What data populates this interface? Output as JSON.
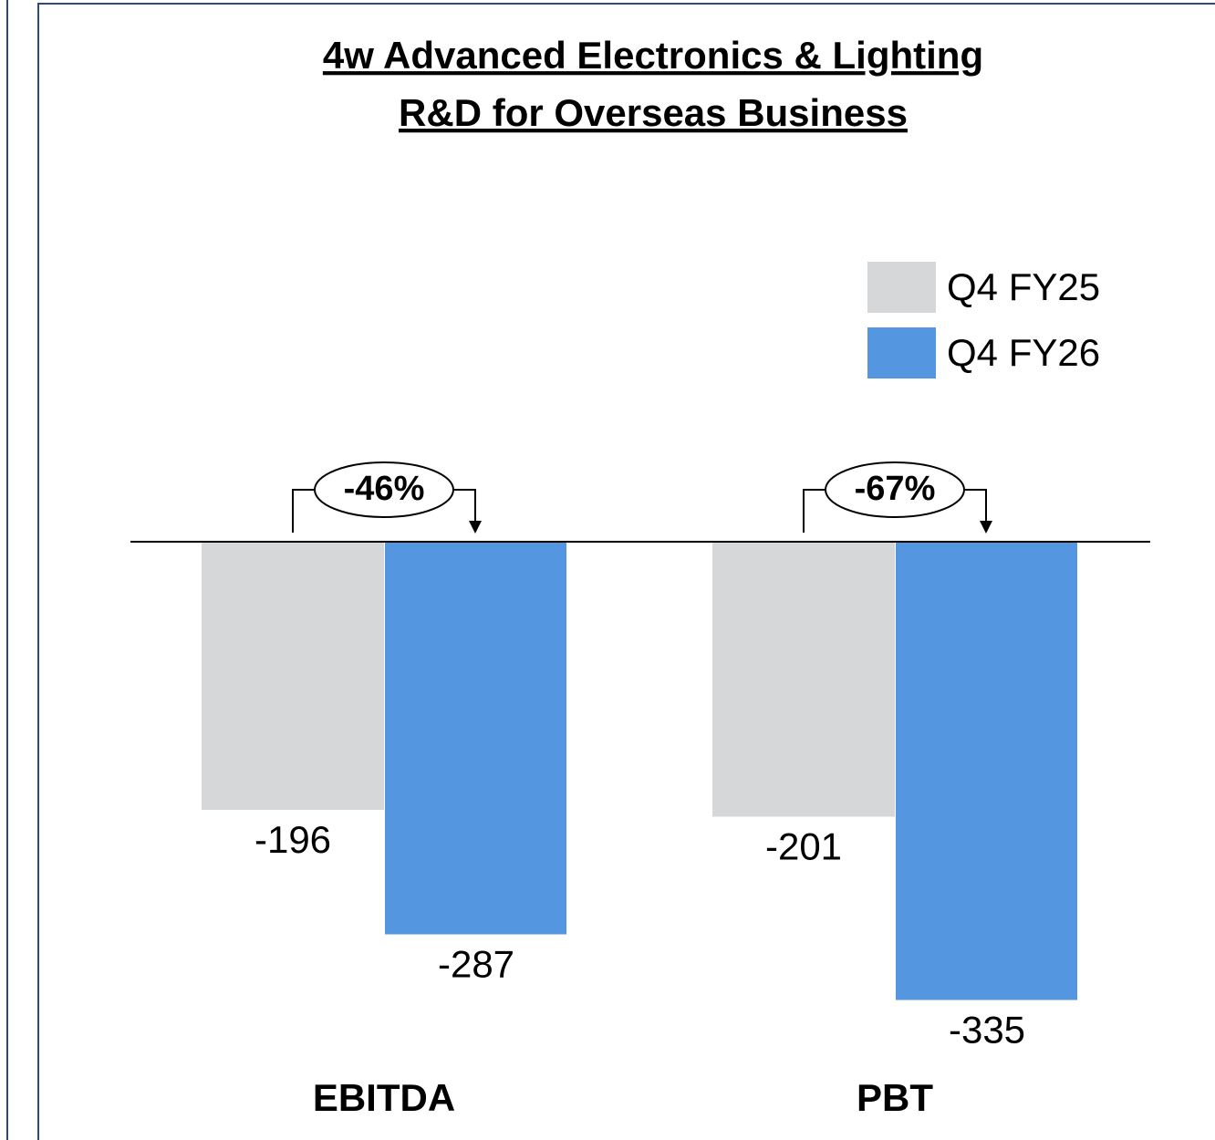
{
  "chart_data": {
    "type": "bar",
    "title": [
      "4w Advanced Electronics & Lighting",
      "R&D for Overseas Business"
    ],
    "categories": [
      "EBITDA",
      "PBT"
    ],
    "series": [
      {
        "name": "Q4 FY25",
        "color": "#d6d7d8",
        "values": [
          -196,
          -201
        ]
      },
      {
        "name": "Q4 FY26",
        "color": "#5596e0",
        "values": [
          -287,
          -335
        ]
      }
    ],
    "annotations": [
      "-46%",
      "-67%"
    ],
    "ylim": [
      -400,
      0
    ],
    "legend": "upper right"
  }
}
